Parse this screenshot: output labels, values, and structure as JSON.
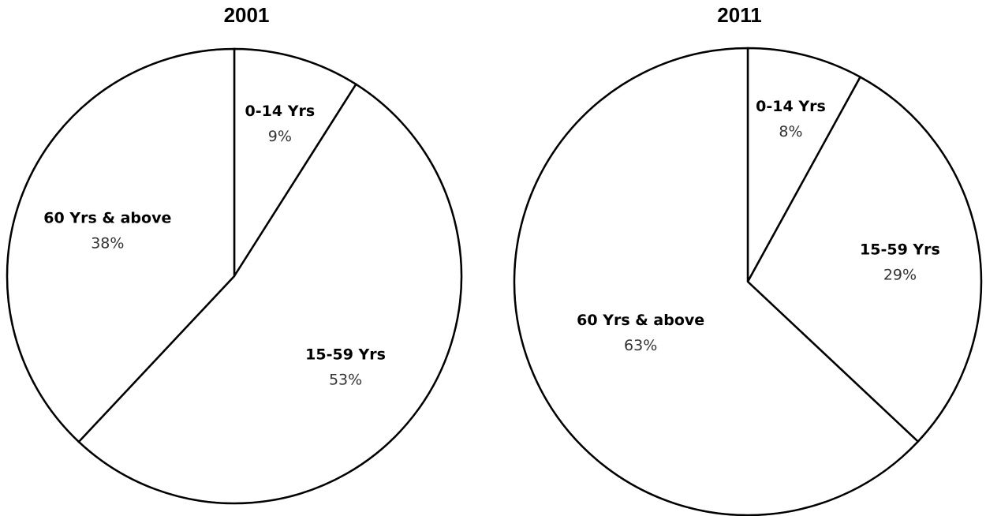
{
  "chart_data": [
    {
      "type": "pie",
      "title": "2001",
      "slices": [
        {
          "label": "0-14 Yrs",
          "value": 9,
          "value_label": "9%"
        },
        {
          "label": "15-59 Yrs",
          "value": 53,
          "value_label": "53%"
        },
        {
          "label": "60 Yrs & above",
          "value": 38,
          "value_label": "38%"
        }
      ],
      "start": "12 o'clock",
      "direction": "clockwise",
      "colors": {
        "fill": "#ffffff",
        "stroke": "#000000"
      }
    },
    {
      "type": "pie",
      "title": "2011",
      "slices": [
        {
          "label": "0-14 Yrs",
          "value": 8,
          "value_label": "8%"
        },
        {
          "label": "15-59 Yrs",
          "value": 29,
          "value_label": "29%"
        },
        {
          "label": "60 Yrs & above",
          "value": 63,
          "value_label": "63%"
        }
      ],
      "start": "12 o'clock",
      "direction": "clockwise",
      "colors": {
        "fill": "#ffffff",
        "stroke": "#000000"
      }
    }
  ]
}
